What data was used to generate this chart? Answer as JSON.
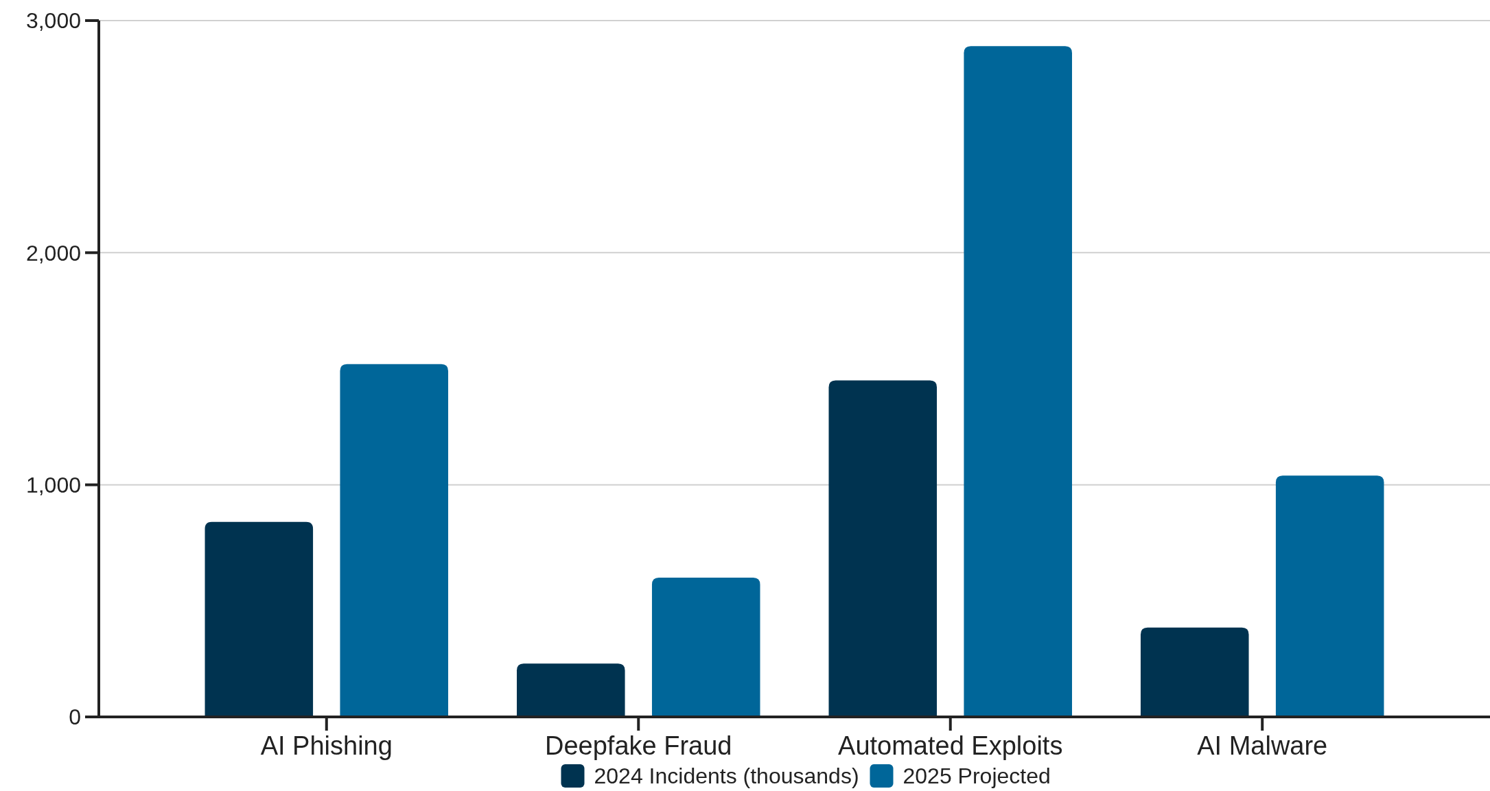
{
  "chart_data": {
    "type": "bar",
    "categories": [
      "AI Phishing",
      "Deepfake Fraud",
      "Automated Exploits",
      "AI Malware"
    ],
    "series": [
      {
        "name": "2024 Incidents (thousands)",
        "color": "#003350",
        "values": [
          840,
          230,
          1450,
          385
        ]
      },
      {
        "name": "2025 Projected",
        "color": "#006699",
        "values": [
          1520,
          600,
          2890,
          1040
        ]
      }
    ],
    "ylim": [
      0,
      3000
    ],
    "yticks": [
      {
        "value": 0,
        "label": "0"
      },
      {
        "value": 1000,
        "label": "1,000"
      },
      {
        "value": 2000,
        "label": "2,000"
      },
      {
        "value": 3000,
        "label": "3,000"
      }
    ],
    "grid": "y",
    "legend": "bottom"
  }
}
